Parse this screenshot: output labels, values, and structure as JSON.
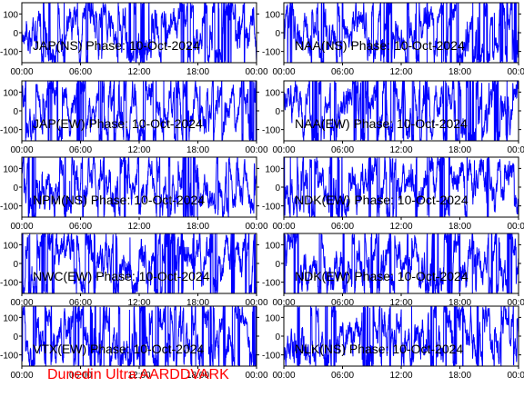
{
  "chart_data": [
    {
      "type": "line",
      "title": "JAP(NS) Phase: 10-Oct-2024",
      "x": [
        "00:00",
        "06:00",
        "12:00",
        "18:00",
        "00:00"
      ],
      "y_ticks": [
        100,
        0,
        -100
      ],
      "ylim": [
        -160,
        160
      ],
      "xlim_hours": [
        0,
        24
      ],
      "series": [
        {
          "color": "#0000ff"
        }
      ]
    },
    {
      "type": "line",
      "title": "NAA(NS) Phase: 10-Oct-2024",
      "x": [
        "00:00",
        "06:00",
        "12:00",
        "18:00",
        "00:00"
      ],
      "y_ticks": [
        100,
        0,
        -100
      ],
      "ylim": [
        -160,
        160
      ],
      "xlim_hours": [
        0,
        24
      ],
      "series": [
        {
          "color": "#0000ff"
        }
      ]
    },
    {
      "type": "line",
      "title": "JAP(EW) Phase: 10-Oct-2024",
      "x": [
        "00:00",
        "06:00",
        "12:00",
        "18:00",
        "00:00"
      ],
      "y_ticks": [
        100,
        0,
        -100
      ],
      "ylim": [
        -160,
        160
      ],
      "xlim_hours": [
        0,
        24
      ],
      "series": [
        {
          "color": "#0000ff"
        }
      ]
    },
    {
      "type": "line",
      "title": "NAA(EW) Phase: 10-Oct-2024",
      "x": [
        "00:00",
        "06:00",
        "12:00",
        "18:00",
        "00:00"
      ],
      "y_ticks": [
        100,
        0,
        -100
      ],
      "ylim": [
        -160,
        160
      ],
      "xlim_hours": [
        0,
        24
      ],
      "series": [
        {
          "color": "#0000ff"
        }
      ]
    },
    {
      "type": "line",
      "title": "NPM(NS) Phase: 10-Oct-2024",
      "x": [
        "00:00",
        "06:00",
        "12:00",
        "18:00",
        "00:00"
      ],
      "y_ticks": [
        100,
        0,
        -100
      ],
      "ylim": [
        -160,
        160
      ],
      "xlim_hours": [
        0,
        24
      ],
      "series": [
        {
          "color": "#0000ff"
        }
      ]
    },
    {
      "type": "line",
      "title": "NDK(EW) Phase: 10-Oct-2024",
      "x": [
        "00:00",
        "06:00",
        "12:00",
        "18:00",
        "00:00"
      ],
      "y_ticks": [
        100,
        0,
        -100
      ],
      "ylim": [
        -160,
        160
      ],
      "xlim_hours": [
        0,
        24
      ],
      "series": [
        {
          "color": "#0000ff"
        }
      ]
    },
    {
      "type": "line",
      "title": "NWC(EW) Phase: 10-Oct-2024",
      "x": [
        "00:00",
        "06:00",
        "12:00",
        "18:00",
        "00:00"
      ],
      "y_ticks": [
        100,
        0,
        -100
      ],
      "ylim": [
        -160,
        160
      ],
      "xlim_hours": [
        0,
        24
      ],
      "series": [
        {
          "color": "#0000ff"
        }
      ]
    },
    {
      "type": "line",
      "title": "NDK(EW) Phase: 10-Oct-2024",
      "x": [
        "00:00",
        "06:00",
        "12:00",
        "18:00",
        "00:00"
      ],
      "y_ticks": [
        100,
        0,
        -100
      ],
      "ylim": [
        -160,
        160
      ],
      "xlim_hours": [
        0,
        24
      ],
      "series": [
        {
          "color": "#0000ff"
        }
      ]
    },
    {
      "type": "line",
      "title": "VTX(EW) Phase: 10-Oct-2024",
      "x": [
        "00:00",
        "06:00",
        "12:00",
        "18:00",
        "00:00"
      ],
      "y_ticks": [
        100,
        0,
        -100
      ],
      "ylim": [
        -160,
        160
      ],
      "xlim_hours": [
        0,
        24
      ],
      "series": [
        {
          "color": "#0000ff"
        }
      ]
    },
    {
      "type": "line",
      "title": "NLK(NS) Phase: 10-Oct-2024",
      "x": [
        "00:00",
        "06:00",
        "12:00",
        "18:00",
        "00:00"
      ],
      "y_ticks": [
        100,
        0,
        -100
      ],
      "ylim": [
        -160,
        160
      ],
      "xlim_hours": [
        0,
        24
      ],
      "series": [
        {
          "color": "#0000ff"
        }
      ]
    }
  ],
  "footer": {
    "text": "Dunedin Ultra AARDDVARK",
    "color": "#ff0000"
  }
}
